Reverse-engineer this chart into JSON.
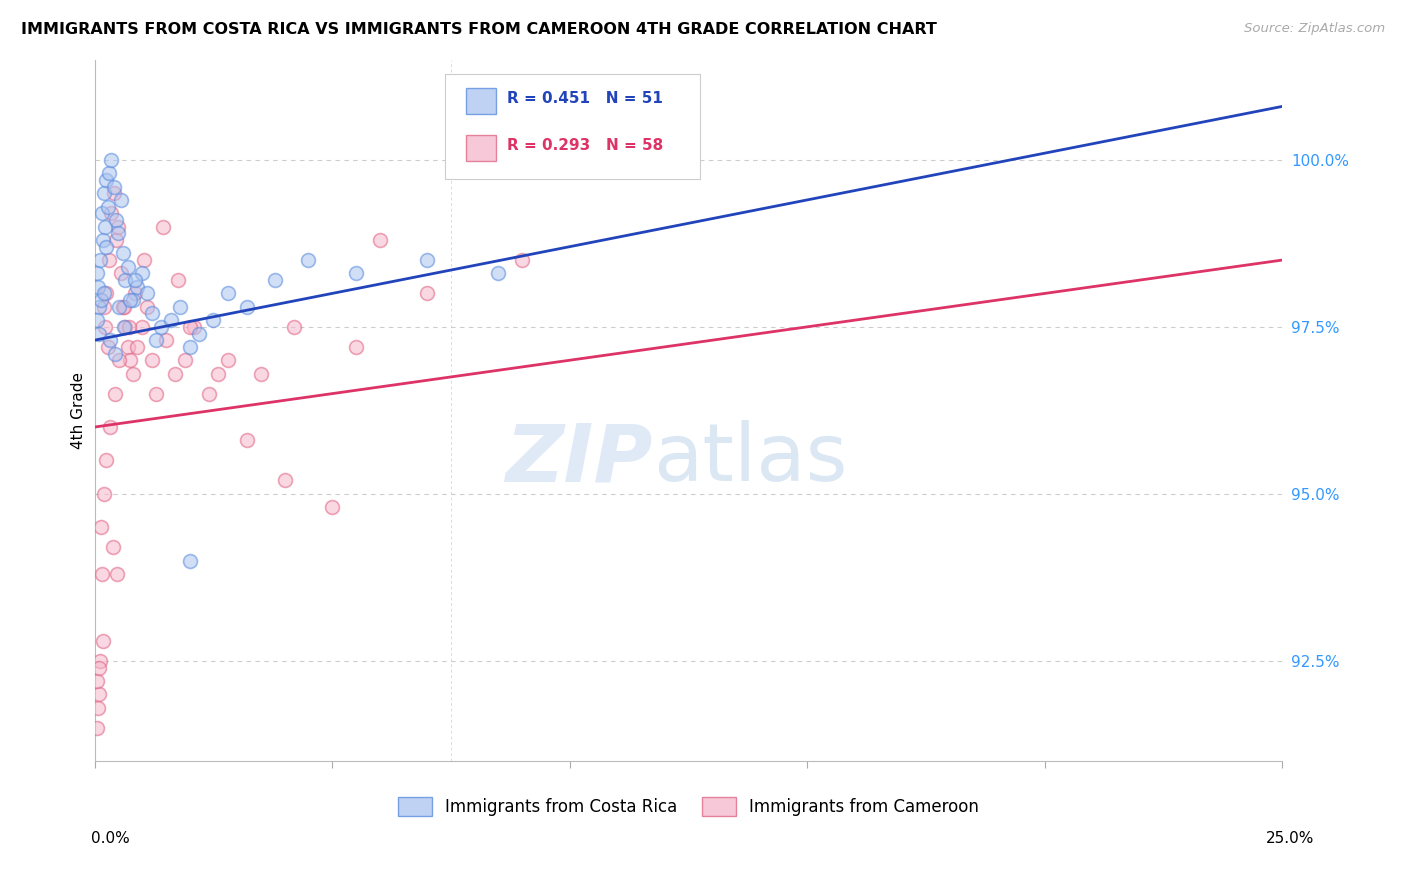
{
  "title": "IMMIGRANTS FROM COSTA RICA VS IMMIGRANTS FROM CAMEROON 4TH GRADE CORRELATION CHART",
  "source": "Source: ZipAtlas.com",
  "ylabel": "4th Grade",
  "xlim": [
    0.0,
    25.0
  ],
  "ylim": [
    91.0,
    101.5
  ],
  "ytick_vals": [
    92.5,
    95.0,
    97.5,
    100.0
  ],
  "ytick_labels": [
    "92.5%",
    "95.0%",
    "97.5%",
    "100.0%"
  ],
  "legend_label1": "Immigrants from Costa Rica",
  "legend_label2": "Immigrants from Cameroon",
  "blue_color": "#aac4f0",
  "blue_edge": "#5588dd",
  "pink_color": "#f5b8cc",
  "pink_edge": "#e06080",
  "blue_line_color": "#2244bb",
  "pink_line_color": "#dd3366",
  "point_size": 100,
  "alpha": 0.55,
  "costa_rica_x": [
    0.05,
    0.08,
    0.1,
    0.12,
    0.15,
    0.18,
    0.2,
    0.22,
    0.25,
    0.28,
    0.3,
    0.35,
    0.4,
    0.45,
    0.5,
    0.55,
    0.6,
    0.65,
    0.7,
    0.8,
    0.9,
    1.0,
    1.1,
    1.2,
    1.4,
    1.6,
    1.8,
    2.0,
    2.2,
    2.5,
    2.8,
    3.2,
    3.8,
    4.5,
    5.5,
    7.0,
    8.5,
    0.06,
    0.09,
    0.14,
    0.19,
    0.24,
    0.32,
    0.42,
    0.52,
    0.62,
    0.75,
    0.85,
    1.3,
    2.0
  ],
  "costa_rica_y": [
    98.3,
    98.1,
    97.8,
    98.5,
    99.2,
    98.8,
    99.5,
    99.0,
    99.7,
    99.3,
    99.8,
    100.0,
    99.6,
    99.1,
    98.9,
    99.4,
    98.6,
    98.2,
    98.4,
    97.9,
    98.1,
    98.3,
    98.0,
    97.7,
    97.5,
    97.6,
    97.8,
    97.2,
    97.4,
    97.6,
    98.0,
    97.8,
    98.2,
    98.5,
    98.3,
    98.5,
    98.3,
    97.6,
    97.4,
    97.9,
    98.0,
    98.7,
    97.3,
    97.1,
    97.8,
    97.5,
    97.9,
    98.2,
    97.3,
    94.0
  ],
  "cameroon_x": [
    0.05,
    0.08,
    0.1,
    0.12,
    0.15,
    0.18,
    0.2,
    0.22,
    0.25,
    0.28,
    0.3,
    0.35,
    0.4,
    0.45,
    0.5,
    0.55,
    0.6,
    0.65,
    0.7,
    0.75,
    0.8,
    0.9,
    1.0,
    1.1,
    1.2,
    1.3,
    1.5,
    1.7,
    1.9,
    2.1,
    2.4,
    2.8,
    3.5,
    4.2,
    5.5,
    7.0,
    9.0,
    0.06,
    0.09,
    0.14,
    0.19,
    0.24,
    0.32,
    0.42,
    0.52,
    0.62,
    0.72,
    0.85,
    1.05,
    1.45,
    1.75,
    2.0,
    2.6,
    3.2,
    4.0,
    5.0,
    6.0,
    0.38,
    0.48
  ],
  "cameroon_y": [
    91.5,
    91.8,
    92.0,
    92.5,
    93.8,
    92.8,
    97.8,
    97.5,
    98.0,
    97.2,
    98.5,
    99.2,
    99.5,
    98.8,
    99.0,
    98.3,
    97.8,
    97.5,
    97.2,
    97.0,
    96.8,
    97.2,
    97.5,
    97.8,
    97.0,
    96.5,
    97.3,
    96.8,
    97.0,
    97.5,
    96.5,
    97.0,
    96.8,
    97.5,
    97.2,
    98.0,
    98.5,
    92.2,
    92.4,
    94.5,
    95.0,
    95.5,
    96.0,
    96.5,
    97.0,
    97.8,
    97.5,
    98.0,
    98.5,
    99.0,
    98.2,
    97.5,
    96.8,
    95.8,
    95.2,
    94.8,
    98.8,
    94.2,
    93.8
  ],
  "cr_line_x0": 0.0,
  "cr_line_y0": 97.3,
  "cr_line_x1": 25.0,
  "cr_line_y1": 100.8,
  "cam_line_x0": 0.0,
  "cam_line_y0": 96.0,
  "cam_line_x1": 25.0,
  "cam_line_y1": 98.5
}
